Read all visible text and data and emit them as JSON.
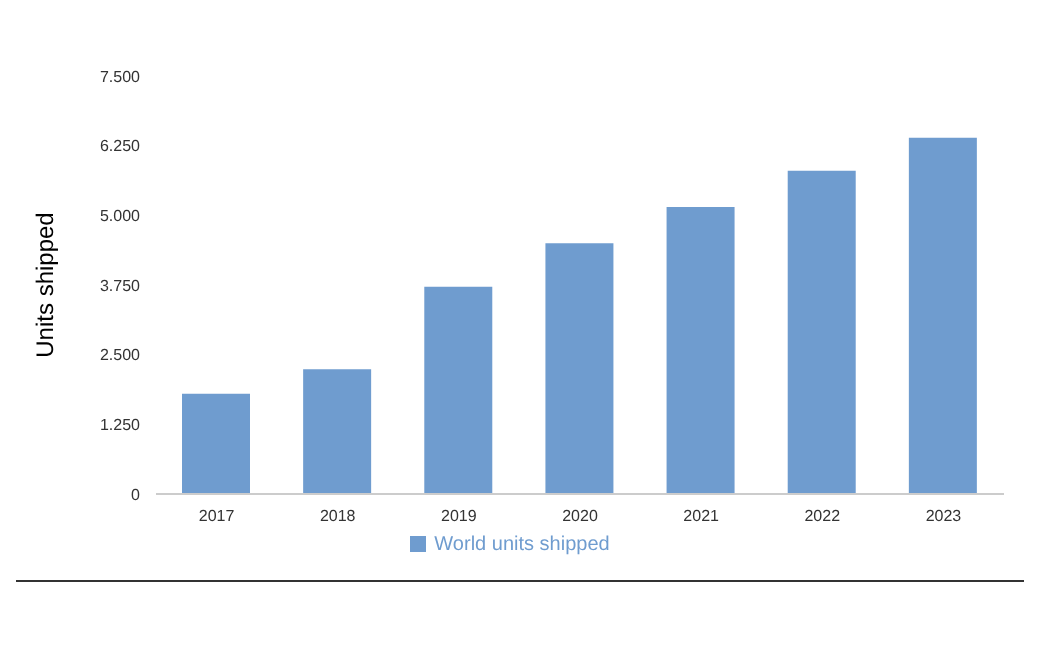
{
  "chart_data": {
    "type": "bar",
    "ylabel": "Units shipped",
    "categories": [
      "2017",
      "2018",
      "2019",
      "2020",
      "2021",
      "2022",
      "2023"
    ],
    "series": [
      {
        "name": "World units shipped",
        "color": "#6f9ccf",
        "values": [
          1800,
          2240,
          3720,
          4500,
          5150,
          5800,
          6390
        ]
      }
    ],
    "ylim": [
      0,
      7500
    ],
    "yticks": [
      0,
      {
        "value": 1250,
        "label": "1.250"
      },
      {
        "value": 2500,
        "label": "2.500"
      },
      {
        "value": 3750,
        "label": "3.750"
      },
      {
        "value": 5000,
        "label": "5.000"
      },
      {
        "value": 6250,
        "label": "6.250"
      },
      {
        "value": 7500,
        "label": "7.500"
      }
    ],
    "grid": false,
    "legend": "bottom"
  }
}
